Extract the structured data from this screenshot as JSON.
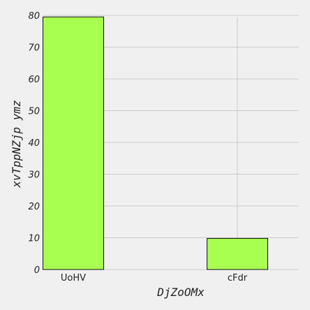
{
  "chart_data": {
    "type": "bar",
    "categories": [
      "UoHV",
      "cFdr"
    ],
    "values": [
      79.5,
      9.8
    ],
    "xlabel": "DjZoOMx",
    "ylabel": "xvTppNZjp ymz",
    "ylim": [
      0,
      80
    ],
    "yticks": [
      0,
      10,
      20,
      30,
      40,
      50,
      60,
      70,
      80
    ],
    "grid": true,
    "colors": {
      "bar_fill": "#a8ff4f",
      "bar_edge": "#111111",
      "grid": "#cbcbcb",
      "background": "#f0f0f0"
    }
  }
}
